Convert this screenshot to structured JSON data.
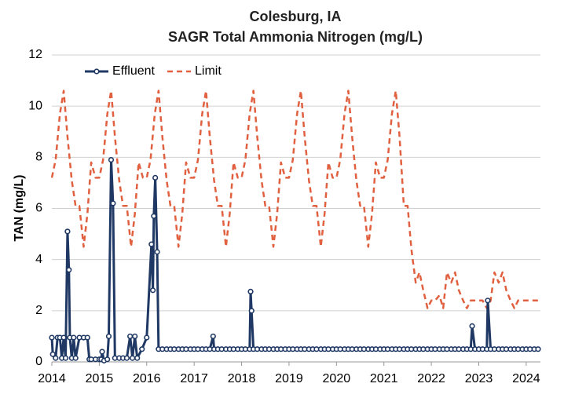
{
  "chart_data": {
    "type": "line",
    "title": "Colesburg, IA",
    "subtitle": "SAGR Total Ammonia Nitrogen (mg/L)",
    "ylabel": "TAN (mg/L)",
    "xlim": [
      2014,
      2024.3
    ],
    "xticks": [
      2014,
      2015,
      2016,
      2017,
      2018,
      2019,
      2020,
      2021,
      2022,
      2023,
      2024
    ],
    "ylim": [
      0,
      12
    ],
    "yticks": [
      0,
      2,
      4,
      6,
      8,
      10,
      12
    ],
    "grid": true,
    "legend": "upper left",
    "series": [
      {
        "name": "Effluent",
        "color": "#1f3864",
        "marker": "circle",
        "dash": "solid",
        "x": [
          2014.0,
          2014.02,
          2014.08,
          2014.12,
          2014.17,
          2014.21,
          2014.25,
          2014.29,
          2014.33,
          2014.36,
          2014.38,
          2014.42,
          2014.46,
          2014.5,
          2014.58,
          2014.67,
          2014.75,
          2014.79,
          2014.83,
          2014.92,
          2015.0,
          2015.04,
          2015.06,
          2015.1,
          2015.17,
          2015.2,
          2015.25,
          2015.29,
          2015.33,
          2015.42,
          2015.5,
          2015.58,
          2015.65,
          2015.7,
          2015.75,
          2015.8,
          2015.9,
          2016.0,
          2016.1,
          2016.13,
          2016.15,
          2016.18,
          2016.22,
          2016.25,
          2016.33,
          2016.42,
          2016.5,
          2016.58,
          2016.67,
          2016.75,
          2016.83,
          2016.92,
          2017.0,
          2017.08,
          2017.17,
          2017.25,
          2017.33,
          2017.4,
          2017.42,
          2017.5,
          2017.58,
          2017.67,
          2017.75,
          2017.83,
          2017.92,
          2018.0,
          2018.08,
          2018.17,
          2018.19,
          2018.21,
          2018.25,
          2018.33,
          2018.42,
          2018.5,
          2018.58,
          2018.67,
          2018.75,
          2018.83,
          2018.92,
          2019.0,
          2019.08,
          2019.17,
          2019.25,
          2019.33,
          2019.42,
          2019.5,
          2019.58,
          2019.67,
          2019.75,
          2019.83,
          2019.92,
          2020.0,
          2020.08,
          2020.17,
          2020.25,
          2020.33,
          2020.42,
          2020.5,
          2020.58,
          2020.67,
          2020.75,
          2020.83,
          2020.92,
          2021.0,
          2021.08,
          2021.17,
          2021.25,
          2021.33,
          2021.42,
          2021.5,
          2021.58,
          2021.67,
          2021.75,
          2021.83,
          2021.92,
          2022.0,
          2022.08,
          2022.17,
          2022.25,
          2022.33,
          2022.42,
          2022.5,
          2022.58,
          2022.67,
          2022.75,
          2022.83,
          2022.86,
          2022.92,
          2023.0,
          2023.08,
          2023.17,
          2023.19,
          2023.25,
          2023.33,
          2023.42,
          2023.5,
          2023.58,
          2023.67,
          2023.75,
          2023.83,
          2023.92,
          2024.0,
          2024.08,
          2024.17,
          2024.25
        ],
        "values": [
          0.95,
          0.3,
          0.15,
          0.95,
          0.95,
          0.15,
          0.95,
          0.15,
          5.1,
          3.6,
          0.95,
          0.15,
          0.95,
          0.15,
          0.95,
          0.95,
          0.95,
          0.1,
          0.1,
          0.1,
          0.1,
          0.1,
          0.4,
          0.05,
          0.1,
          1.0,
          7.9,
          6.2,
          0.15,
          0.15,
          0.15,
          0.15,
          1.0,
          0.15,
          1.0,
          0.15,
          0.5,
          0.95,
          4.6,
          2.8,
          5.7,
          7.2,
          4.3,
          0.5,
          0.5,
          0.5,
          0.5,
          0.5,
          0.5,
          0.5,
          0.5,
          0.5,
          0.5,
          0.5,
          0.5,
          0.5,
          0.5,
          1.0,
          0.5,
          0.5,
          0.5,
          0.5,
          0.5,
          0.5,
          0.5,
          0.5,
          0.5,
          0.5,
          2.75,
          2.0,
          0.5,
          0.5,
          0.5,
          0.5,
          0.5,
          0.5,
          0.5,
          0.5,
          0.5,
          0.5,
          0.5,
          0.5,
          0.5,
          0.5,
          0.5,
          0.5,
          0.5,
          0.5,
          0.5,
          0.5,
          0.5,
          0.5,
          0.5,
          0.5,
          0.5,
          0.5,
          0.5,
          0.5,
          0.5,
          0.5,
          0.5,
          0.5,
          0.5,
          0.5,
          0.5,
          0.5,
          0.5,
          0.5,
          0.5,
          0.5,
          0.5,
          0.5,
          0.5,
          0.5,
          0.5,
          0.5,
          0.5,
          0.5,
          0.5,
          0.5,
          0.5,
          0.5,
          0.5,
          0.5,
          0.5,
          0.5,
          1.4,
          0.5,
          0.5,
          0.5,
          0.5,
          2.4,
          0.5,
          0.5,
          0.5,
          0.5,
          0.5,
          0.5,
          0.5,
          0.5,
          0.5,
          0.5,
          0.5,
          0.5,
          0.5
        ]
      },
      {
        "name": "Limit",
        "color": "#e06040",
        "marker": "none",
        "dash": "dashed",
        "x": [
          2014.0,
          2014.08,
          2014.17,
          2014.25,
          2014.33,
          2014.42,
          2014.5,
          2014.58,
          2014.67,
          2014.75,
          2014.83,
          2014.92,
          2015.0,
          2015.08,
          2015.17,
          2015.25,
          2015.33,
          2015.42,
          2015.5,
          2015.58,
          2015.67,
          2015.75,
          2015.83,
          2015.92,
          2016.0,
          2016.08,
          2016.17,
          2016.25,
          2016.33,
          2016.42,
          2016.5,
          2016.58,
          2016.67,
          2016.75,
          2016.83,
          2016.92,
          2017.0,
          2017.08,
          2017.17,
          2017.25,
          2017.33,
          2017.42,
          2017.5,
          2017.58,
          2017.67,
          2017.75,
          2017.83,
          2017.92,
          2018.0,
          2018.08,
          2018.17,
          2018.25,
          2018.33,
          2018.42,
          2018.5,
          2018.58,
          2018.67,
          2018.75,
          2018.83,
          2018.92,
          2019.0,
          2019.08,
          2019.17,
          2019.25,
          2019.33,
          2019.42,
          2019.5,
          2019.58,
          2019.67,
          2019.75,
          2019.83,
          2019.92,
          2020.0,
          2020.08,
          2020.17,
          2020.25,
          2020.33,
          2020.42,
          2020.5,
          2020.58,
          2020.67,
          2020.75,
          2020.83,
          2020.92,
          2021.0,
          2021.08,
          2021.17,
          2021.25,
          2021.33,
          2021.42,
          2021.5,
          2021.58,
          2021.67,
          2021.75,
          2021.83,
          2021.92,
          2022.0,
          2022.08,
          2022.17,
          2022.25,
          2022.33,
          2022.42,
          2022.5,
          2022.58,
          2022.67,
          2022.75,
          2022.83,
          2022.92,
          2023.0,
          2023.08,
          2023.17,
          2023.25,
          2023.33,
          2023.42,
          2023.5,
          2023.58,
          2023.67,
          2023.75,
          2023.83,
          2023.92,
          2024.0,
          2024.08,
          2024.17,
          2024.25
        ],
        "values": [
          7.2,
          7.9,
          9.7,
          10.6,
          8.8,
          7.1,
          6.1,
          6.1,
          4.5,
          5.8,
          7.8,
          7.2,
          7.2,
          7.9,
          9.7,
          10.6,
          8.8,
          7.1,
          6.1,
          6.1,
          4.5,
          5.8,
          7.8,
          7.2,
          7.2,
          7.9,
          9.7,
          10.6,
          8.8,
          7.1,
          6.1,
          6.1,
          4.5,
          5.8,
          7.8,
          7.2,
          7.2,
          7.9,
          9.7,
          10.6,
          8.8,
          7.1,
          6.1,
          6.1,
          4.5,
          5.8,
          7.8,
          7.2,
          7.2,
          7.9,
          9.7,
          10.6,
          8.8,
          7.1,
          6.1,
          6.1,
          4.5,
          5.8,
          7.8,
          7.2,
          7.2,
          7.9,
          9.7,
          10.6,
          8.8,
          7.1,
          6.1,
          6.1,
          4.5,
          5.8,
          7.8,
          7.2,
          7.2,
          7.9,
          9.7,
          10.6,
          8.8,
          7.1,
          6.1,
          6.1,
          4.5,
          5.8,
          7.8,
          7.2,
          7.2,
          7.9,
          9.7,
          10.6,
          8.8,
          6.1,
          6.1,
          4.4,
          3.1,
          3.5,
          2.8,
          2.1,
          2.4,
          2.4,
          2.6,
          2.1,
          3.5,
          3.1,
          3.5,
          2.8,
          2.4,
          2.1,
          2.4,
          2.4,
          2.4,
          2.4,
          2.1,
          2.4,
          3.5,
          3.1,
          3.5,
          2.8,
          2.4,
          2.1,
          2.4,
          2.4,
          2.4,
          2.4,
          2.4,
          2.4
        ]
      }
    ]
  }
}
